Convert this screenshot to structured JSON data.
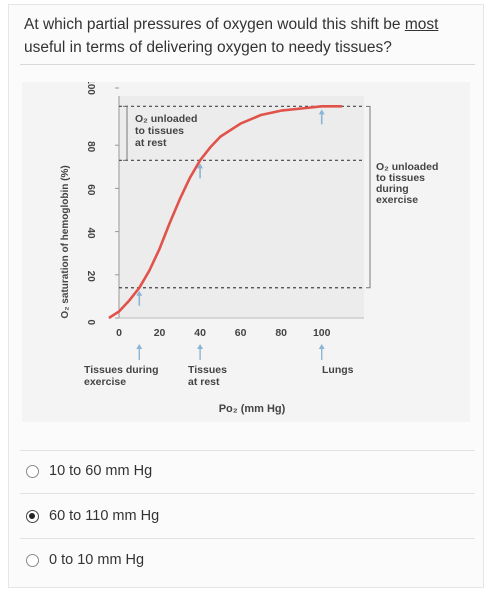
{
  "question": {
    "part1": "At which partial pressures of oxygen would this shift be ",
    "underlined": "most",
    "part2": " useful in terms of delivering oxygen to needy tissues?"
  },
  "chart_data": {
    "type": "line",
    "ylabel": "O₂ saturation of hemoglobin (%)",
    "xlabel": "Po₂ (mm Hg)",
    "y_ticks": [
      "100",
      "80",
      "60",
      "40",
      "20",
      "0"
    ],
    "x_ticks": [
      "0",
      "20",
      "40",
      "60",
      "80",
      "100"
    ],
    "xlim": [
      0,
      110
    ],
    "ylim": [
      0,
      100
    ],
    "series": [
      {
        "values_x": [
          -5,
          0,
          5,
          10,
          15,
          20,
          25,
          30,
          35,
          40,
          45,
          50,
          60,
          70,
          80,
          90,
          100,
          110
        ],
        "values_y": [
          0,
          3,
          8,
          14,
          22,
          32,
          44,
          55,
          65,
          73,
          79,
          84,
          90,
          94,
          96,
          97,
          98,
          98
        ]
      }
    ],
    "annotations": {
      "unloaded_rest": [
        "O₂ unloaded",
        "to tissues",
        "at rest"
      ],
      "unloaded_exercise": [
        "O₂ unloaded",
        "to tissues",
        "during",
        "exercise"
      ],
      "tissues_exercise": [
        "Tissues during",
        "exercise"
      ],
      "tissues_rest": [
        "Tissues",
        "at rest"
      ],
      "lungs": "Lungs"
    },
    "colors": {
      "curve": "#e0524a",
      "arrow": "#8ab6d6"
    }
  },
  "options": [
    {
      "label": "10 to 60 mm Hg",
      "selected": false
    },
    {
      "label": "60 to 110 mm Hg",
      "selected": true
    },
    {
      "label": "0 to 10 mm Hg",
      "selected": false
    }
  ]
}
